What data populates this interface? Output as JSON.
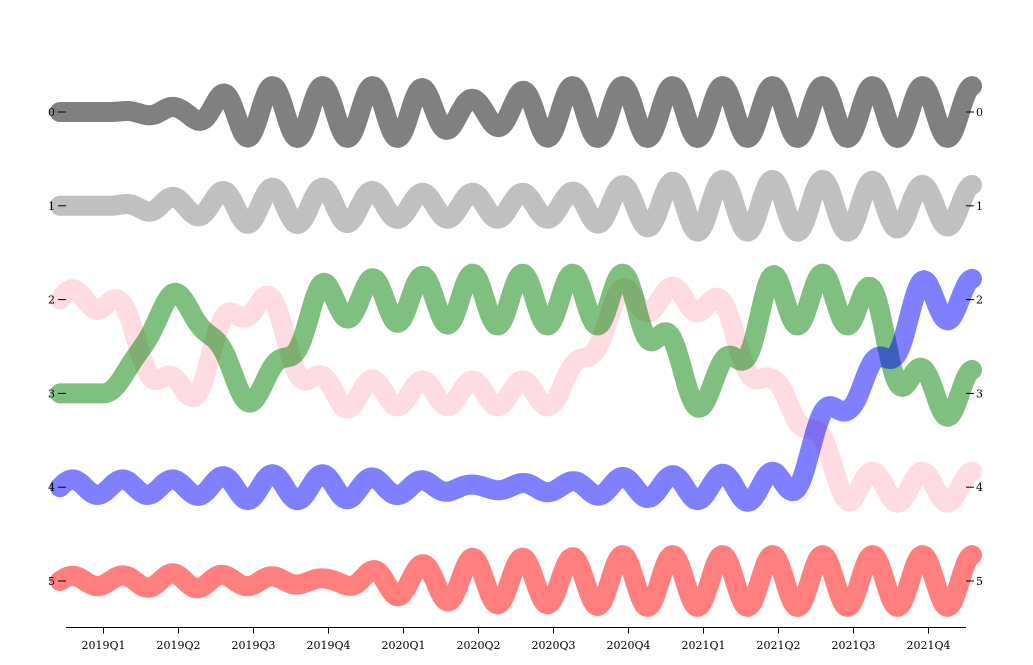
{
  "chart_data": {
    "type": "line",
    "title": "",
    "xlabel": "",
    "ylabel": "",
    "categories": [
      "2019Q1",
      "2019Q2",
      "2019Q3",
      "2019Q4",
      "2020Q1",
      "2020Q2",
      "2020Q3",
      "2020Q4",
      "2021Q1",
      "2021Q2",
      "2021Q3",
      "2021Q4"
    ],
    "y_ticks": [
      "0",
      "1",
      "2",
      "3",
      "4",
      "5"
    ],
    "ylim": [
      0,
      5
    ],
    "grid": false,
    "legend": "none",
    "series": [
      {
        "color": "#808080",
        "opacity": 1.0,
        "values": [
          0,
          0,
          0,
          0,
          0,
          0,
          0,
          0,
          0,
          0,
          0,
          0
        ],
        "wiggle": [
          0,
          0.2,
          1,
          1,
          1,
          0.5,
          1,
          1,
          1,
          1,
          1,
          1
        ]
      },
      {
        "color": "#c0c0c0",
        "opacity": 1.0,
        "values": [
          1,
          1,
          1,
          1,
          1,
          1,
          1,
          1,
          1,
          1,
          1,
          1
        ],
        "wiggle": [
          0,
          0.35,
          0.7,
          0.7,
          0.5,
          0.5,
          0.5,
          0.8,
          1,
          1,
          1,
          0.8
        ]
      },
      {
        "color": "#ffc0cb",
        "opacity": 0.55,
        "values": [
          2,
          3,
          2,
          3,
          3,
          3,
          3,
          2,
          2,
          3,
          4,
          4
        ],
        "wiggle": [
          0.4,
          0.6,
          0.6,
          0.6,
          0.5,
          0.5,
          0.5,
          0.5,
          0.5,
          0.5,
          0.6,
          0.6
        ]
      },
      {
        "color": "#008000",
        "opacity": 0.5,
        "values": [
          3,
          2,
          3,
          2,
          2,
          2,
          2,
          2,
          3,
          2,
          2,
          3
        ],
        "wiggle": [
          0,
          0.3,
          0.4,
          0.7,
          0.9,
          1,
          1,
          1,
          0.6,
          1,
          1,
          0.9
        ]
      },
      {
        "color": "#0000ff",
        "opacity": 0.5,
        "values": [
          4,
          4,
          4,
          4,
          4,
          4,
          4,
          4,
          4,
          4,
          3,
          2
        ],
        "wiggle": [
          0.3,
          0.3,
          0.5,
          0.5,
          0.3,
          0.1,
          0.2,
          0.4,
          0.5,
          0.6,
          0.6,
          0.8
        ]
      },
      {
        "color": "#ff0000",
        "opacity": 0.5,
        "values": [
          5,
          5,
          5,
          5,
          5,
          5,
          5,
          5,
          5,
          5,
          5,
          5
        ],
        "wiggle": [
          0.2,
          0.3,
          0.2,
          0.1,
          0.6,
          0.9,
          0.9,
          1,
          1,
          1,
          1,
          1
        ]
      }
    ]
  }
}
